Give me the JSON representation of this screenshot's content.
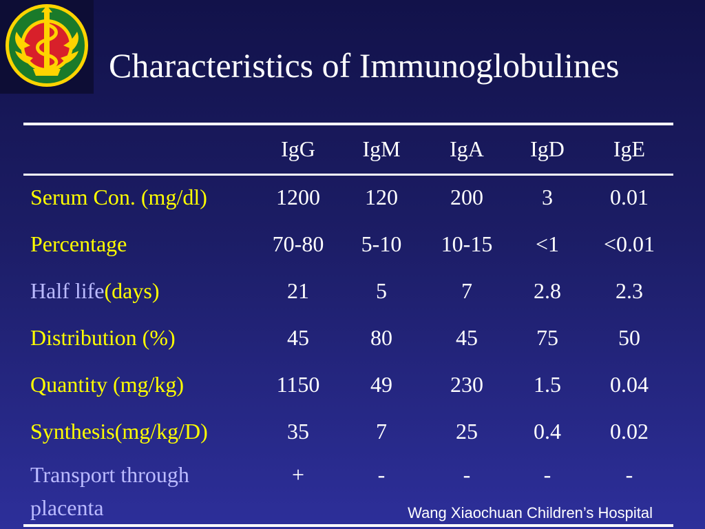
{
  "title": "Characteristics of Immunoglobulines",
  "logo": {
    "icon": "hospital-emblem-icon",
    "colors": [
      "#1a7a2a",
      "#ffd400",
      "#d8202a"
    ]
  },
  "table": {
    "headers": [
      "",
      "IgG",
      "IgM",
      "IgA",
      "IgD",
      "IgE"
    ],
    "rows": [
      {
        "label": "Serum Con. (mg/dl)",
        "values": [
          "1200",
          "120",
          "200",
          "3",
          "0.01"
        ]
      },
      {
        "label": "Percentage",
        "values": [
          "70-80",
          "5-10",
          "10-15",
          "<1",
          "<0.01"
        ]
      },
      {
        "label_main": "Half life",
        "label_unit": "(days)",
        "values": [
          "21",
          "5",
          "7",
          "2.8",
          "2.3"
        ]
      },
      {
        "label": "Distribution (%)",
        "values": [
          "45",
          "80",
          "45",
          "75",
          "50"
        ]
      },
      {
        "label": "Quantity (mg/kg)",
        "values": [
          "1150",
          "49",
          "230",
          "1.5",
          "0.04"
        ]
      },
      {
        "label": "Synthesis(mg/kg/D)",
        "values": [
          "35",
          "7",
          "25",
          "0.4",
          "0.02"
        ]
      },
      {
        "label": "Transport through placenta",
        "values": [
          "+",
          "-",
          "-",
          "-",
          "-"
        ]
      }
    ]
  },
  "colors": {
    "label_yellow": "#ffff00",
    "label_lavender": "#bbbbff",
    "value_white": "#ffffff"
  },
  "footer": "Wang Xiaochuan Children’s Hospital"
}
